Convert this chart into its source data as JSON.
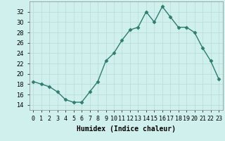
{
  "x": [
    0,
    1,
    2,
    3,
    4,
    5,
    6,
    7,
    8,
    9,
    10,
    11,
    12,
    13,
    14,
    15,
    16,
    17,
    18,
    19,
    20,
    21,
    22,
    23
  ],
  "y": [
    18.5,
    18.0,
    17.5,
    16.5,
    15.0,
    14.5,
    14.5,
    16.5,
    18.5,
    22.5,
    24.0,
    26.5,
    28.5,
    29.0,
    32.0,
    30.0,
    33.0,
    31.0,
    29.0,
    29.0,
    28.0,
    25.0,
    22.5,
    19.0
  ],
  "line_color": "#2e7d6e",
  "marker": "D",
  "marker_size": 2.5,
  "bg_color": "#cff0ec",
  "grid_color": "#b8dbd6",
  "xlabel": "Humidex (Indice chaleur)",
  "xlim": [
    -0.5,
    23.5
  ],
  "ylim": [
    13,
    34
  ],
  "yticks": [
    14,
    16,
    18,
    20,
    22,
    24,
    26,
    28,
    30,
    32
  ],
  "xtick_labels": [
    "0",
    "1",
    "2",
    "3",
    "4",
    "5",
    "6",
    "7",
    "8",
    "9",
    "10",
    "11",
    "12",
    "13",
    "14",
    "15",
    "16",
    "17",
    "18",
    "19",
    "20",
    "21",
    "22",
    "23"
  ],
  "xlabel_fontsize": 7,
  "tick_fontsize": 6,
  "linewidth": 1.0
}
